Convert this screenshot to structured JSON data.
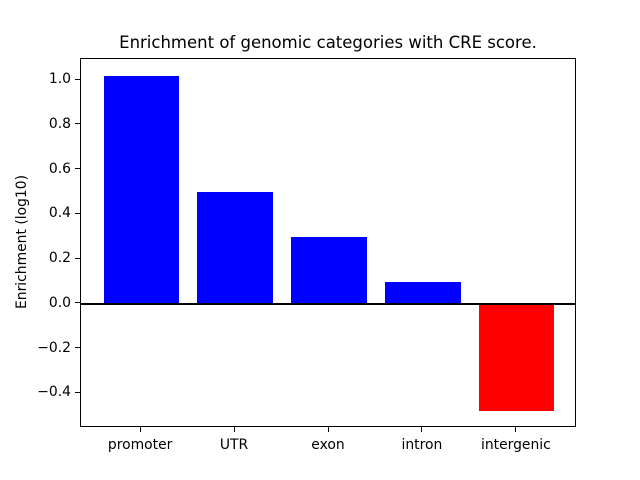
{
  "chart_data": {
    "type": "bar",
    "title": "Enrichment of genomic categories with CRE score.",
    "ylabel": "Enrichment (log10)",
    "xlabel": "",
    "categories": [
      "promoter",
      "UTR",
      "exon",
      "intron",
      "intergenic"
    ],
    "values": [
      1.02,
      0.5,
      0.3,
      0.1,
      -0.48
    ],
    "bar_colors": [
      "#0000ff",
      "#0000ff",
      "#0000ff",
      "#0000ff",
      "#ff0000"
    ],
    "positive_color": "#0000ff",
    "negative_color": "#ff0000",
    "yticks": [
      -0.4,
      -0.2,
      0.0,
      0.2,
      0.4,
      0.6,
      0.8,
      1.0
    ],
    "ylim": [
      -0.555,
      1.095
    ],
    "bar_width_data_units": 0.8,
    "xlim": [
      -0.64,
      4.64
    ],
    "grid": false,
    "zero_line": true,
    "legend": null,
    "axis_color": "#000000",
    "background_color": "#ffffff"
  }
}
